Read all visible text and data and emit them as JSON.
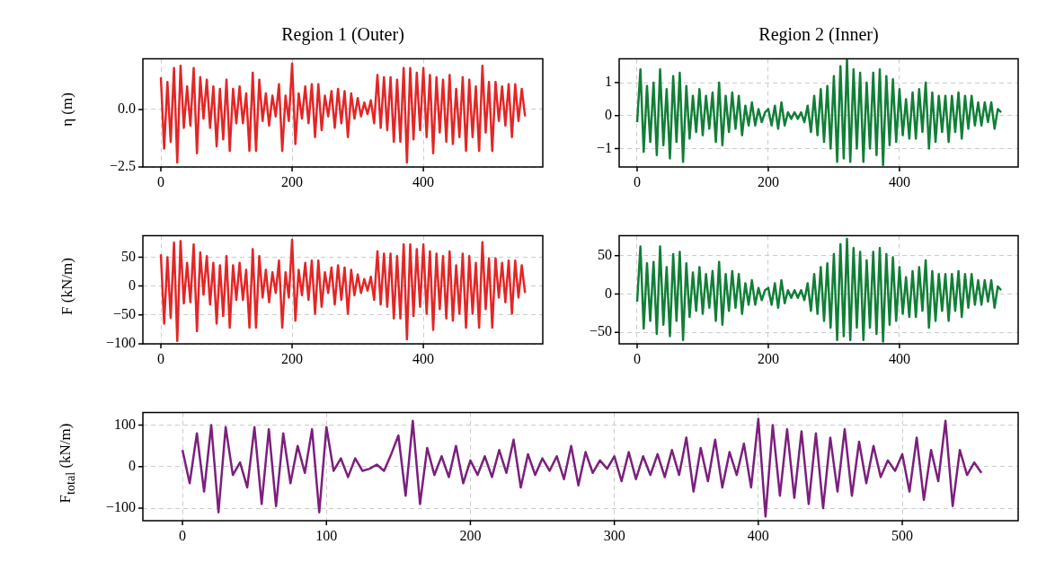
{
  "chart_data": [
    {
      "type": "line",
      "title": "Region 1 (Outer)",
      "ylabel": "η (m)",
      "color": "#e32626",
      "grid": true,
      "xlim": [
        -27.4,
        582
      ],
      "xticks": [
        0,
        200,
        400
      ],
      "ylim": [
        -2.5,
        2.2
      ],
      "yticks": [
        {
          "value": -2.5,
          "label": "−2.5"
        },
        {
          "value": 0,
          "label": "0.0"
        }
      ],
      "x": [
        0,
        5,
        10,
        15,
        20,
        25,
        30,
        35,
        40,
        45,
        50,
        55,
        60,
        65,
        70,
        75,
        80,
        85,
        90,
        95,
        100,
        105,
        110,
        115,
        120,
        125,
        130,
        135,
        140,
        145,
        150,
        155,
        160,
        165,
        170,
        175,
        180,
        185,
        190,
        195,
        200,
        205,
        210,
        215,
        220,
        225,
        230,
        235,
        240,
        245,
        250,
        255,
        260,
        265,
        270,
        275,
        280,
        285,
        290,
        295,
        300,
        305,
        310,
        315,
        320,
        325,
        330,
        335,
        340,
        345,
        350,
        355,
        360,
        365,
        370,
        375,
        380,
        385,
        390,
        395,
        400,
        405,
        410,
        415,
        420,
        425,
        430,
        435,
        440,
        445,
        450,
        455,
        460,
        465,
        470,
        475,
        480,
        485,
        490,
        495,
        500,
        505,
        510,
        515,
        520,
        525,
        530,
        535,
        540,
        545,
        550,
        555
      ],
      "values": [
        1.4,
        -1.7,
        1.2,
        -1.4,
        1.8,
        -2.3,
        1.9,
        -0.8,
        1.0,
        -0.7,
        1.8,
        -1.9,
        1.4,
        -0.4,
        1.3,
        -0.8,
        1.0,
        -1.6,
        0.9,
        -1.3,
        1.3,
        -1.8,
        0.9,
        -0.6,
        1.0,
        -0.6,
        0.7,
        -1.8,
        1.6,
        -1.8,
        1.3,
        -0.5,
        0.7,
        -0.7,
        0.6,
        -0.3,
        1.1,
        -1.8,
        0.6,
        -0.5,
        2.0,
        -1.5,
        0.7,
        -0.4,
        1.0,
        -0.6,
        1.1,
        -1.2,
        1.1,
        -0.9,
        0.6,
        -0.3,
        0.8,
        -0.8,
        0.9,
        -0.6,
        0.8,
        -1.2,
        0.7,
        -0.4,
        0.5,
        -0.3,
        0.3,
        -0.2,
        0.4,
        -0.6,
        1.5,
        -0.8,
        1.4,
        -0.9,
        1.4,
        -1.4,
        1.3,
        -1.4,
        1.8,
        -2.3,
        1.8,
        -1.3,
        1.6,
        -0.9,
        1.8,
        -1.2,
        1.5,
        -1.9,
        1.4,
        -1.0,
        1.3,
        -1.4,
        1.5,
        -1.5,
        0.9,
        -1.2,
        1.4,
        -1.8,
        1.3,
        -1.2,
        1.0,
        -1.8,
        1.9,
        -1.0,
        1.2,
        -1.8,
        1.2,
        -0.5,
        1.0,
        -0.7,
        1.1,
        -1.2,
        1.1,
        -0.5,
        0.9,
        -0.3
      ]
    },
    {
      "type": "line",
      "title": "Region 2 (Inner)",
      "color": "#117f37",
      "grid": true,
      "xlim": [
        -27.4,
        581
      ],
      "xticks": [
        0,
        200,
        400
      ],
      "ylim": [
        -1.56,
        1.72
      ],
      "yticks": [
        {
          "value": -1,
          "label": "−1"
        },
        0,
        1
      ],
      "x": [
        0,
        5,
        10,
        15,
        20,
        25,
        30,
        35,
        40,
        45,
        50,
        55,
        60,
        65,
        70,
        75,
        80,
        85,
        90,
        95,
        100,
        105,
        110,
        115,
        120,
        125,
        130,
        135,
        140,
        145,
        150,
        155,
        160,
        165,
        170,
        175,
        180,
        185,
        190,
        195,
        200,
        205,
        210,
        215,
        220,
        225,
        230,
        235,
        240,
        245,
        250,
        255,
        260,
        265,
        270,
        275,
        280,
        285,
        290,
        295,
        300,
        305,
        310,
        315,
        320,
        325,
        330,
        335,
        340,
        345,
        350,
        355,
        360,
        365,
        370,
        375,
        380,
        385,
        390,
        395,
        400,
        405,
        410,
        415,
        420,
        425,
        430,
        435,
        440,
        445,
        450,
        455,
        460,
        465,
        470,
        475,
        480,
        485,
        490,
        495,
        500,
        505,
        510,
        515,
        520,
        525,
        530,
        535,
        540,
        545,
        550,
        555
      ],
      "values": [
        -0.2,
        1.4,
        -1.1,
        0.9,
        -0.8,
        1.0,
        -1.2,
        1.4,
        -0.9,
        0.8,
        -1.3,
        1.2,
        -0.8,
        1.3,
        -1.4,
        0.9,
        -0.7,
        0.6,
        -0.5,
        0.8,
        -0.6,
        0.6,
        -0.4,
        0.7,
        -0.8,
        1.0,
        -0.9,
        0.6,
        -0.5,
        0.7,
        -0.4,
        0.6,
        -0.6,
        0.3,
        -0.3,
        0.4,
        -0.3,
        0.2,
        -0.2,
        0.1,
        0.2,
        -0.3,
        0.3,
        -0.4,
        0.4,
        -0.3,
        0.1,
        -0.1,
        0.1,
        -0.1,
        0.1,
        -0.2,
        0.3,
        -0.5,
        0.6,
        -0.6,
        0.8,
        -0.8,
        0.9,
        -1.0,
        1.2,
        -1.4,
        1.5,
        -1.3,
        1.7,
        -1.4,
        1.4,
        -1.0,
        1.3,
        -1.4,
        1.0,
        -1.0,
        1.3,
        -1.2,
        1.4,
        -1.5,
        1.2,
        -0.9,
        1.1,
        -0.8,
        0.8,
        -0.6,
        0.5,
        -0.7,
        0.7,
        -0.7,
        0.8,
        -0.5,
        1.0,
        -1.0,
        0.7,
        -0.8,
        0.6,
        -0.5,
        0.6,
        -0.8,
        0.6,
        -0.5,
        0.7,
        -0.7,
        0.6,
        -0.4,
        0.6,
        -0.3,
        0.4,
        -0.3,
        0.4,
        -0.2,
        0.4,
        -0.4,
        0.2,
        0.1
      ]
    },
    {
      "type": "line",
      "ylabel": "F (kN/m)",
      "color": "#e32626",
      "grid": true,
      "xlim": [
        -27.4,
        582
      ],
      "xticks": [
        0,
        200,
        400
      ],
      "ylim": [
        -100,
        87
      ],
      "yticks": [
        {
          "value": -100,
          "label": "−100"
        },
        {
          "value": -50,
          "label": "−50"
        },
        0,
        50
      ],
      "x": [
        0,
        5,
        10,
        15,
        20,
        25,
        30,
        35,
        40,
        45,
        50,
        55,
        60,
        65,
        70,
        75,
        80,
        85,
        90,
        95,
        100,
        105,
        110,
        115,
        120,
        125,
        130,
        135,
        140,
        145,
        150,
        155,
        160,
        165,
        170,
        175,
        180,
        185,
        190,
        195,
        200,
        205,
        210,
        215,
        220,
        225,
        230,
        235,
        240,
        245,
        250,
        255,
        260,
        265,
        270,
        275,
        280,
        285,
        290,
        295,
        300,
        305,
        310,
        315,
        320,
        325,
        330,
        335,
        340,
        345,
        350,
        355,
        360,
        365,
        370,
        375,
        380,
        385,
        390,
        395,
        400,
        405,
        410,
        415,
        420,
        425,
        430,
        435,
        440,
        445,
        450,
        455,
        460,
        465,
        470,
        475,
        480,
        485,
        490,
        495,
        500,
        505,
        510,
        515,
        520,
        525,
        530,
        535,
        540,
        545,
        550,
        555
      ],
      "values": [
        55,
        -65,
        50,
        -55,
        75,
        -95,
        78,
        -30,
        40,
        -28,
        72,
        -78,
        58,
        -15,
        52,
        -32,
        40,
        -65,
        36,
        -52,
        52,
        -72,
        36,
        -24,
        40,
        -24,
        28,
        -72,
        64,
        -72,
        52,
        -20,
        28,
        -28,
        24,
        -12,
        44,
        -72,
        24,
        -20,
        80,
        -60,
        28,
        -16,
        40,
        -24,
        44,
        -48,
        44,
        -36,
        24,
        -12,
        32,
        -32,
        36,
        -24,
        32,
        -48,
        28,
        -16,
        20,
        -12,
        12,
        -8,
        16,
        -24,
        60,
        -32,
        56,
        -36,
        56,
        -56,
        52,
        -56,
        72,
        -92,
        72,
        -52,
        64,
        -36,
        72,
        -48,
        60,
        -76,
        56,
        -40,
        52,
        -56,
        60,
        -60,
        36,
        -48,
        56,
        -72,
        52,
        -48,
        40,
        -72,
        76,
        -40,
        48,
        -72,
        48,
        -20,
        40,
        -28,
        44,
        -48,
        44,
        -20,
        36,
        -12
      ]
    },
    {
      "type": "line",
      "color": "#117f37",
      "grid": true,
      "xlim": [
        -27.4,
        581
      ],
      "xticks": [
        0,
        200,
        400
      ],
      "ylim": [
        -65,
        76
      ],
      "yticks": [
        {
          "value": -50,
          "label": "−50"
        },
        0,
        50
      ],
      "x": [
        0,
        5,
        10,
        15,
        20,
        25,
        30,
        35,
        40,
        45,
        50,
        55,
        60,
        65,
        70,
        75,
        80,
        85,
        90,
        95,
        100,
        105,
        110,
        115,
        120,
        125,
        130,
        135,
        140,
        145,
        150,
        155,
        160,
        165,
        170,
        175,
        180,
        185,
        190,
        195,
        200,
        205,
        210,
        215,
        220,
        225,
        230,
        235,
        240,
        245,
        250,
        255,
        260,
        265,
        270,
        275,
        280,
        285,
        290,
        295,
        300,
        305,
        310,
        315,
        320,
        325,
        330,
        335,
        340,
        345,
        350,
        355,
        360,
        365,
        370,
        375,
        380,
        385,
        390,
        395,
        400,
        405,
        410,
        415,
        420,
        425,
        430,
        435,
        440,
        445,
        450,
        455,
        460,
        465,
        470,
        475,
        480,
        485,
        490,
        495,
        500,
        505,
        510,
        515,
        520,
        525,
        530,
        535,
        540,
        545,
        550,
        555
      ],
      "values": [
        -10,
        62,
        -45,
        40,
        -35,
        42,
        -52,
        62,
        -40,
        35,
        -55,
        52,
        -35,
        55,
        -60,
        40,
        -30,
        28,
        -22,
        35,
        -26,
        26,
        -18,
        30,
        -35,
        42,
        -40,
        26,
        -22,
        30,
        -18,
        26,
        -26,
        14,
        -14,
        18,
        -14,
        8,
        -8,
        5,
        8,
        -14,
        14,
        -18,
        18,
        -12,
        5,
        -5,
        5,
        -5,
        5,
        -8,
        14,
        -22,
        26,
        -26,
        35,
        -35,
        40,
        -44,
        52,
        -60,
        65,
        -55,
        72,
        -60,
        60,
        -44,
        55,
        -60,
        44,
        -44,
        55,
        -52,
        60,
        -62,
        52,
        -40,
        48,
        -35,
        35,
        -26,
        22,
        -30,
        30,
        -30,
        35,
        -22,
        44,
        -44,
        30,
        -35,
        26,
        -22,
        26,
        -35,
        26,
        -22,
        30,
        -30,
        26,
        -18,
        26,
        -14,
        18,
        -14,
        18,
        -10,
        18,
        -18,
        10,
        5
      ]
    },
    {
      "type": "line",
      "ylabel": "F$_{total}$ (kN/m)",
      "color": "#7b1f7d",
      "grid": true,
      "xlim": [
        -27.5,
        580.5
      ],
      "xticks": [
        0,
        100,
        200,
        300,
        400,
        500
      ],
      "ylim": [
        -130,
        130
      ],
      "yticks": [
        {
          "value": -100,
          "label": "−100"
        },
        0,
        100
      ],
      "x": [
        0,
        5,
        10,
        15,
        20,
        25,
        30,
        35,
        40,
        45,
        50,
        55,
        60,
        65,
        70,
        75,
        80,
        85,
        90,
        95,
        100,
        105,
        110,
        115,
        120,
        125,
        130,
        135,
        140,
        145,
        150,
        155,
        160,
        165,
        170,
        175,
        180,
        185,
        190,
        195,
        200,
        205,
        210,
        215,
        220,
        225,
        230,
        235,
        240,
        245,
        250,
        255,
        260,
        265,
        270,
        275,
        280,
        285,
        290,
        295,
        300,
        305,
        310,
        315,
        320,
        325,
        330,
        335,
        340,
        345,
        350,
        355,
        360,
        365,
        370,
        375,
        380,
        385,
        390,
        395,
        400,
        405,
        410,
        415,
        420,
        425,
        430,
        435,
        440,
        445,
        450,
        455,
        460,
        465,
        470,
        475,
        480,
        485,
        490,
        495,
        500,
        505,
        510,
        515,
        520,
        525,
        530,
        535,
        540,
        545,
        550,
        555
      ],
      "values": [
        40,
        -40,
        80,
        -60,
        100,
        -110,
        95,
        -20,
        10,
        -50,
        95,
        -90,
        90,
        -95,
        80,
        -40,
        50,
        -15,
        90,
        -110,
        95,
        -10,
        20,
        -25,
        20,
        -10,
        -5,
        5,
        -10,
        30,
        75,
        -70,
        110,
        -90,
        45,
        -20,
        25,
        -25,
        50,
        -40,
        15,
        -20,
        25,
        -25,
        40,
        -15,
        65,
        -50,
        30,
        -20,
        20,
        -10,
        25,
        -30,
        50,
        -45,
        35,
        -15,
        15,
        -5,
        25,
        -35,
        35,
        -30,
        25,
        -20,
        30,
        -25,
        40,
        -20,
        70,
        -60,
        45,
        -35,
        65,
        -50,
        35,
        -20,
        55,
        -50,
        115,
        -120,
        100,
        -70,
        90,
        -75,
        85,
        -90,
        80,
        -100,
        70,
        -60,
        90,
        -70,
        60,
        -40,
        50,
        -25,
        15,
        -10,
        30,
        -60,
        70,
        -80,
        40,
        -35,
        110,
        -95,
        40,
        -20,
        10,
        -15
      ]
    }
  ]
}
